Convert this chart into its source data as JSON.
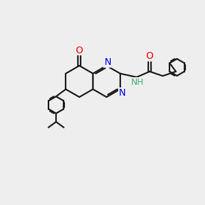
{
  "bg_color": "#eeeeee",
  "bond_color": "#1a1a1a",
  "bond_width": 1.6,
  "atom_colors": {
    "O": "#ff0000",
    "N": "#0000ee",
    "H_color": "#3cb371",
    "C": "#1a1a1a"
  },
  "font_size": 9.5,
  "fig_size": [
    3.0,
    3.0
  ],
  "dpi": 100,
  "xlim": [
    0,
    10
  ],
  "ylim": [
    0,
    10
  ]
}
